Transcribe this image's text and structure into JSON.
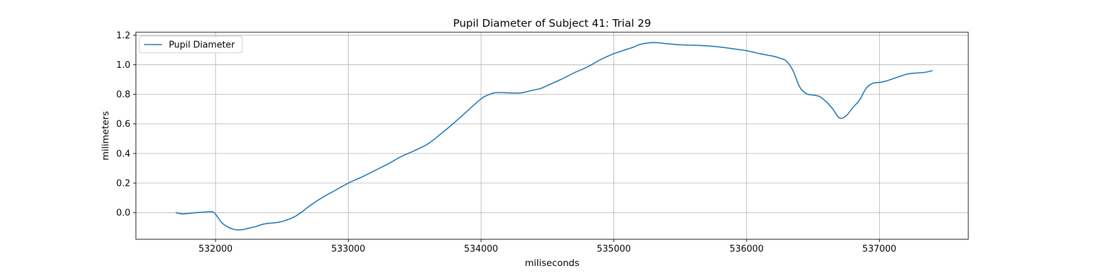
{
  "chart_data": {
    "type": "line",
    "title": "Pupil Diameter of Subject 41: Trial 29",
    "xlabel": "miliseconds",
    "ylabel": "milimeters",
    "xlim": [
      531400,
      537670
    ],
    "ylim": [
      -0.18,
      1.22
    ],
    "xticks": [
      532000,
      533000,
      534000,
      535000,
      536000,
      537000
    ],
    "xtick_labels": [
      "532000",
      "533000",
      "534000",
      "535000",
      "536000",
      "537000"
    ],
    "yticks": [
      0.0,
      0.2,
      0.4,
      0.6,
      0.8,
      1.0,
      1.2
    ],
    "ytick_labels": [
      "0.0",
      "0.2",
      "0.4",
      "0.6",
      "0.8",
      "1.0",
      "1.2"
    ],
    "grid": true,
    "legend": {
      "position": "upper-left",
      "entries": [
        "Pupil Diameter"
      ]
    },
    "series": [
      {
        "name": "Pupil Diameter",
        "color": "#1f77b4",
        "x": [
          531700,
          531750,
          531800,
          531850,
          531900,
          531950,
          531980,
          532000,
          532050,
          532100,
          532150,
          532200,
          532250,
          532300,
          532350,
          532400,
          532450,
          532500,
          532550,
          532600,
          532650,
          532700,
          532800,
          532900,
          533000,
          533100,
          533200,
          533300,
          533400,
          533500,
          533600,
          533700,
          533800,
          533900,
          534000,
          534050,
          534100,
          534150,
          534200,
          534300,
          534400,
          534450,
          534500,
          534600,
          534700,
          534800,
          534900,
          535000,
          535100,
          535150,
          535200,
          535300,
          535400,
          535500,
          535600,
          535700,
          535800,
          535900,
          536000,
          536100,
          536200,
          536250,
          536300,
          536350,
          536400,
          536450,
          536500,
          536550,
          536600,
          536650,
          536700,
          536750,
          536800,
          536850,
          536900,
          536950,
          537000,
          537050,
          537100,
          537150,
          537200,
          537250,
          537300,
          537350,
          537400
        ],
        "values": [
          0.0,
          -0.008,
          -0.005,
          0.0,
          0.003,
          0.006,
          0.005,
          -0.01,
          -0.07,
          -0.1,
          -0.115,
          -0.115,
          -0.105,
          -0.095,
          -0.08,
          -0.072,
          -0.068,
          -0.06,
          -0.045,
          -0.025,
          0.005,
          0.04,
          0.1,
          0.15,
          0.2,
          0.24,
          0.285,
          0.33,
          0.38,
          0.42,
          0.465,
          0.535,
          0.61,
          0.69,
          0.77,
          0.795,
          0.81,
          0.812,
          0.81,
          0.81,
          0.83,
          0.84,
          0.86,
          0.9,
          0.945,
          0.985,
          1.035,
          1.075,
          1.105,
          1.12,
          1.138,
          1.15,
          1.142,
          1.135,
          1.132,
          1.128,
          1.12,
          1.108,
          1.095,
          1.075,
          1.058,
          1.045,
          1.025,
          0.96,
          0.85,
          0.805,
          0.795,
          0.785,
          0.75,
          0.7,
          0.64,
          0.655,
          0.71,
          0.76,
          0.84,
          0.875,
          0.88,
          0.89,
          0.905,
          0.92,
          0.935,
          0.942,
          0.945,
          0.95,
          0.96
        ]
      }
    ]
  }
}
